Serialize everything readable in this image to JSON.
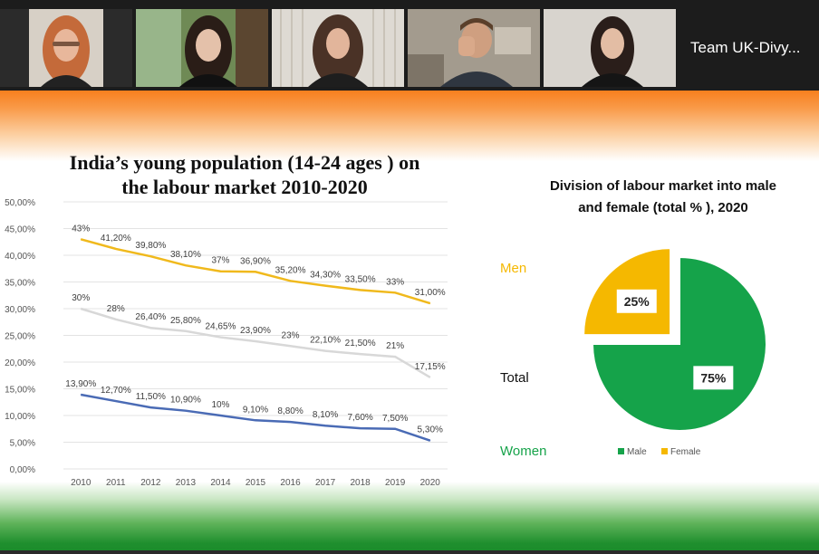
{
  "participants": [
    {
      "icon": "participant-video-1"
    },
    {
      "icon": "participant-video-2"
    },
    {
      "icon": "participant-video-3",
      "active": true
    },
    {
      "icon": "participant-video-4"
    },
    {
      "icon": "participant-video-5"
    }
  ],
  "team_tile": {
    "label": "Team UK-Divy..."
  },
  "slide": {
    "left_title_line1": "India’s young population (14-24 ages ) on",
    "left_title_line2": "the labour market 2010-2020",
    "right_title_line1": "Division of labour market into male",
    "right_title_line2": "and female (total % ),  2020",
    "men_label": "Men",
    "total_label": "Total",
    "women_label": "Women",
    "colors": {
      "orange": "#f77f1e",
      "green": "#1a8a2a",
      "men": "#f5b800",
      "women": "#16a34a"
    }
  },
  "chart_data": [
    {
      "type": "line",
      "title": "India’s young population (14-24 ages ) on the labour market 2010-2020",
      "x": [
        "2010",
        "2011",
        "2012",
        "2013",
        "2014",
        "2015",
        "2016",
        "2017",
        "2018",
        "2019",
        "2020"
      ],
      "ylim": [
        0,
        50
      ],
      "yticks": [
        "0,00%",
        "5,00%",
        "10,00%",
        "15,00%",
        "20,00%",
        "25,00%",
        "30,00%",
        "35,00%",
        "40,00%",
        "45,00%",
        "50,00%"
      ],
      "grid": true,
      "series": [
        {
          "color": "#f0b91c",
          "values": [
            43,
            41.2,
            39.8,
            38.1,
            37,
            36.9,
            35.2,
            34.3,
            33.5,
            33,
            31
          ],
          "labels": [
            "43%",
            "41,20%",
            "39,80%",
            "38,10%",
            "37%",
            "36,90%",
            "35,20%",
            "34,30%",
            "33,50%",
            "33%",
            "31,00%"
          ]
        },
        {
          "color": "#d8d8d8",
          "values": [
            30,
            28,
            26.4,
            25.8,
            24.65,
            23.9,
            23,
            22.1,
            21.5,
            21,
            17.15
          ],
          "labels": [
            "30%",
            "28%",
            "26,40%",
            "25,80%",
            "24,65%",
            "23,90%",
            "23%",
            "22,10%",
            "21,50%",
            "21%",
            "17,15%"
          ]
        },
        {
          "color": "#4a6bb5",
          "values": [
            13.9,
            12.7,
            11.5,
            10.9,
            10,
            9.1,
            8.8,
            8.1,
            7.6,
            7.5,
            5.3
          ],
          "labels": [
            "13,90%",
            "12,70%",
            "11,50%",
            "10,90%",
            "10%",
            "9,10%",
            "8,80%",
            "8,10%",
            "7,60%",
            "7,50%",
            "5,30%"
          ]
        }
      ]
    },
    {
      "type": "pie",
      "title": "Division of labour market into male and female (total % ),  2020",
      "slices": [
        {
          "name": "Male",
          "value": 75,
          "label": "75%",
          "color": "#15a34a"
        },
        {
          "name": "Female",
          "value": 25,
          "label": "25%",
          "color": "#f5b800"
        }
      ],
      "legend_position": "bottom"
    }
  ]
}
